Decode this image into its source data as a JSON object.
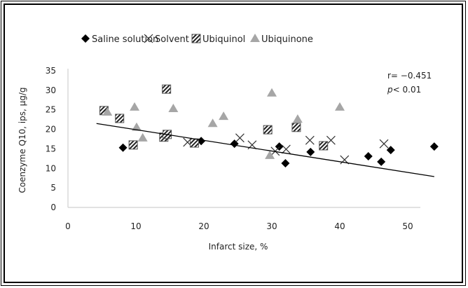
{
  "chart_data": {
    "type": "scatter",
    "title": "",
    "xlabel": "Infarct size, %",
    "ylabel": "Coenzyme Q10, ips, µg/g",
    "xlim": [
      0,
      60
    ],
    "ylim": [
      0,
      35
    ],
    "xticks": [
      0,
      10,
      20,
      30,
      40,
      50
    ],
    "yticks": [
      0,
      5,
      10,
      15,
      20,
      25,
      30,
      35
    ],
    "grid": false,
    "legend_position": "top-center",
    "annotation": {
      "r": "r= −0.451",
      "p_italic": "p",
      "p_rest": "< 0.01"
    },
    "trendline": {
      "x": [
        4.2,
        53.9
      ],
      "y": [
        21.5,
        7.9
      ]
    },
    "series": [
      {
        "name": "Saline solution",
        "marker": "diamond",
        "color": "#000000",
        "points": [
          [
            8.1,
            15.3
          ],
          [
            19.6,
            17.0
          ],
          [
            24.5,
            16.3
          ],
          [
            31.1,
            15.6
          ],
          [
            32.0,
            11.3
          ],
          [
            35.7,
            14.2
          ],
          [
            44.2,
            13.1
          ],
          [
            46.1,
            11.7
          ],
          [
            47.5,
            14.7
          ],
          [
            53.9,
            15.6
          ]
        ]
      },
      {
        "name": "Solvent",
        "marker": "x",
        "color": "#333333",
        "points": [
          [
            17.6,
            16.7
          ],
          [
            25.3,
            17.8
          ],
          [
            27.1,
            16.0
          ],
          [
            30.5,
            14.4
          ],
          [
            32.1,
            14.9
          ],
          [
            35.6,
            17.2
          ],
          [
            38.7,
            17.2
          ],
          [
            40.7,
            12.2
          ],
          [
            46.5,
            16.3
          ]
        ]
      },
      {
        "name": "Ubiquinol",
        "marker": "hatched-square",
        "color": "#555555",
        "points": [
          [
            5.3,
            24.8
          ],
          [
            7.6,
            22.8
          ],
          [
            9.6,
            16.0
          ],
          [
            14.1,
            18.0
          ],
          [
            14.5,
            30.3
          ],
          [
            14.6,
            18.7
          ],
          [
            18.6,
            16.5
          ],
          [
            29.4,
            19.9
          ],
          [
            33.6,
            20.5
          ],
          [
            37.6,
            15.8
          ]
        ]
      },
      {
        "name": "Ubiquinone",
        "marker": "triangle",
        "color": "#a6a6a6",
        "points": [
          [
            5.8,
            24.4
          ],
          [
            9.8,
            25.7
          ],
          [
            10.1,
            20.5
          ],
          [
            11.0,
            17.8
          ],
          [
            15.5,
            25.3
          ],
          [
            21.3,
            21.5
          ],
          [
            22.9,
            23.3
          ],
          [
            29.7,
            13.3
          ],
          [
            30.0,
            29.3
          ],
          [
            33.8,
            22.6
          ],
          [
            40.0,
            25.7
          ]
        ]
      }
    ]
  }
}
